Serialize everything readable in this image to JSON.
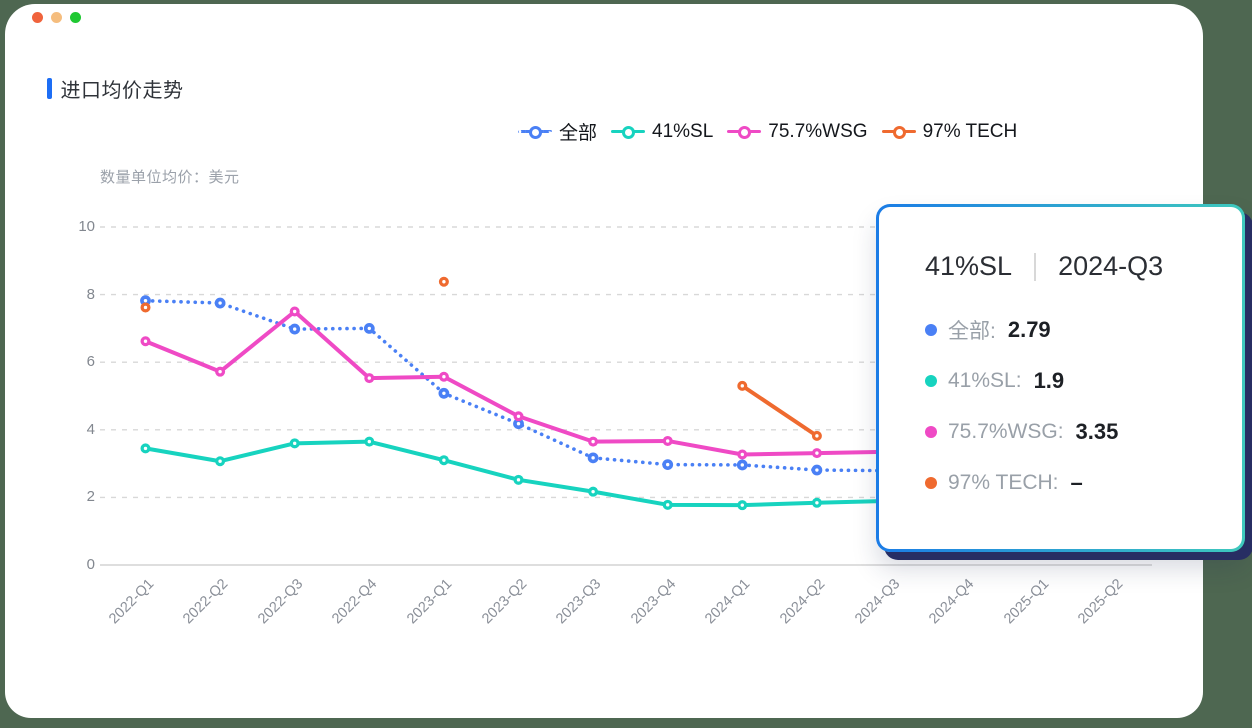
{
  "window": {
    "dots": [
      "#f0633c",
      "#f5bd7e",
      "#1fc832"
    ]
  },
  "header": {
    "title": "进口均价走势",
    "accent_color": "#1d6ef5"
  },
  "legend": {
    "items": [
      {
        "label": "全部"
      },
      {
        "label": "41%SL"
      },
      {
        "label": "75.7%WSG"
      },
      {
        "label": "97% TECH"
      }
    ]
  },
  "chart": {
    "unit_label": "数量单位均价：美元"
  },
  "chart_data": {
    "type": "line",
    "title": "进口均价走势",
    "ylabel": "数量单位均价：美元",
    "ylim": [
      0,
      10
    ],
    "yticks": [
      0,
      2,
      4,
      6,
      8,
      10
    ],
    "grid": "horizontal-dashed",
    "legend_position": "top",
    "categories": [
      "2022-Q1",
      "2022-Q2",
      "2022-Q3",
      "2022-Q4",
      "2023-Q1",
      "2023-Q2",
      "2023-Q3",
      "2023-Q4",
      "2024-Q1",
      "2024-Q2",
      "2024-Q3",
      "2024-Q4",
      "2025-Q1",
      "2025-Q2"
    ],
    "series": [
      {
        "name": "全部",
        "color": "#4a80f5",
        "style": "dotted",
        "values": [
          7.82,
          7.75,
          6.98,
          7.0,
          5.08,
          4.18,
          3.17,
          2.97,
          2.96,
          2.81,
          2.79,
          null,
          null,
          null
        ]
      },
      {
        "name": "41%SL",
        "color": "#17d3bf",
        "style": "solid",
        "values": [
          3.45,
          3.07,
          3.6,
          3.65,
          3.1,
          2.52,
          2.17,
          1.78,
          1.77,
          1.84,
          1.9,
          null,
          null,
          null
        ]
      },
      {
        "name": "75.7%WSG",
        "color": "#ef4ac5",
        "style": "solid",
        "values": [
          6.62,
          5.72,
          7.5,
          5.53,
          5.57,
          4.4,
          3.65,
          3.67,
          3.27,
          3.31,
          3.35,
          null,
          null,
          null
        ]
      },
      {
        "name": "97% TECH",
        "color": "#ef6a2f",
        "style": "solid",
        "values": [
          7.62,
          null,
          null,
          null,
          8.38,
          null,
          null,
          null,
          5.3,
          3.82,
          null,
          null,
          null,
          null
        ]
      }
    ]
  },
  "tooltip": {
    "series_name": "41%SL",
    "period": "2024-Q3",
    "rows": [
      {
        "label": "全部:",
        "value": "2.79",
        "color": "#4a80f5"
      },
      {
        "label": "41%SL:",
        "value": "1.9",
        "color": "#17d3bf"
      },
      {
        "label": "75.7%WSG:",
        "value": "3.35",
        "color": "#ef4ac5"
      },
      {
        "label": "97% TECH:",
        "value": "–",
        "color": "#ef6a2f"
      }
    ],
    "border_gradient": [
      "#1b7ce6",
      "#3ec9bd"
    ],
    "shadow_color": "#272e63"
  }
}
